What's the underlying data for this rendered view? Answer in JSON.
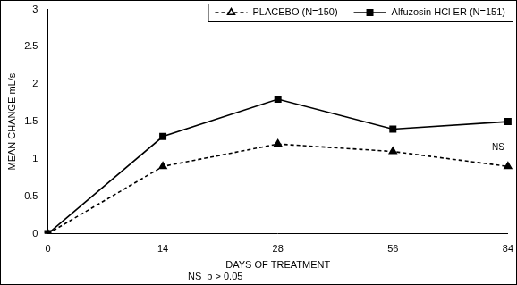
{
  "chart_data": {
    "type": "line",
    "x_label": "DAYS OF TREATMENT",
    "y_label": "MEAN CHANGE mL/s",
    "categories": [
      "0",
      "14",
      "28",
      "56",
      "84"
    ],
    "series": [
      {
        "name": "PLACEBO (N=150)",
        "color": "#000000",
        "marker": "triangle",
        "line_style": "dashed",
        "values": [
          0,
          0.9,
          1.2,
          1.1,
          0.9
        ]
      },
      {
        "name": "Alfuzosin HCl ER (N=151)",
        "color": "#000000",
        "marker": "square",
        "line_style": "solid",
        "values": [
          0,
          1.3,
          1.8,
          1.4,
          1.5
        ]
      }
    ],
    "ylim": [
      0,
      3
    ],
    "yticks": [
      0,
      0.5,
      1,
      1.5,
      2,
      2.5,
      3
    ],
    "grid": false,
    "legend": "upper right",
    "annotations": [
      "NS",
      "NS  p > 0.05"
    ]
  }
}
